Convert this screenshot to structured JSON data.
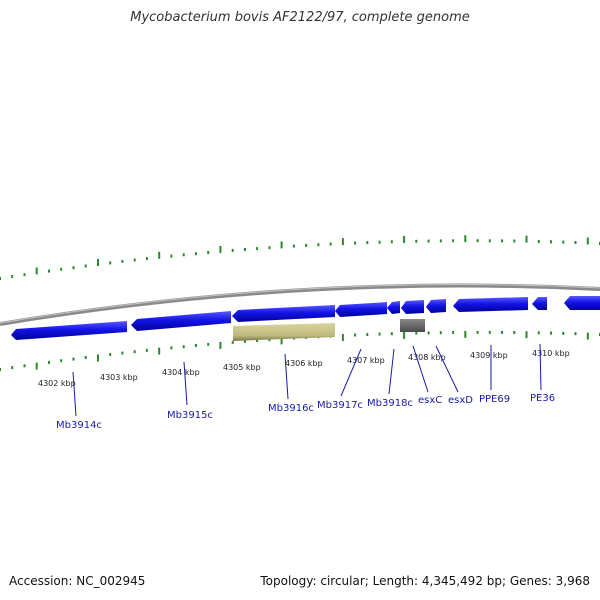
{
  "title": "Mycobacterium bovis AF2122/97, complete genome",
  "footer": {
    "accession": "Accession: NC_002945",
    "stats": "Topology: circular; Length: 4,345,492 bp; Genes: 3,968"
  },
  "colors": {
    "backbone": "#8a8a8a",
    "gene_cds": "#1414e6",
    "gene_pseudo": "#c8c48a",
    "gene_other": "#707070",
    "tick": "#2a8a2a",
    "label": "#1a1aa8"
  },
  "ticks": [
    {
      "label": "4302 kbp"
    },
    {
      "label": "4303 kbp"
    },
    {
      "label": "4304 kbp"
    },
    {
      "label": "4305 kbp"
    },
    {
      "label": "4306 kbp"
    },
    {
      "label": "4307 kbp"
    },
    {
      "label": "4308 kbp"
    },
    {
      "label": "4309 kbp"
    },
    {
      "label": "4310 kbp"
    }
  ],
  "genes": [
    {
      "label": "Mb3914c"
    },
    {
      "label": "Mb3915c"
    },
    {
      "label": "Mb3916c"
    },
    {
      "label": "Mb3917c"
    },
    {
      "label": "Mb3918c"
    },
    {
      "label": "esxC"
    },
    {
      "label": "esxD"
    },
    {
      "label": "PPE69"
    },
    {
      "label": "PE36"
    }
  ]
}
